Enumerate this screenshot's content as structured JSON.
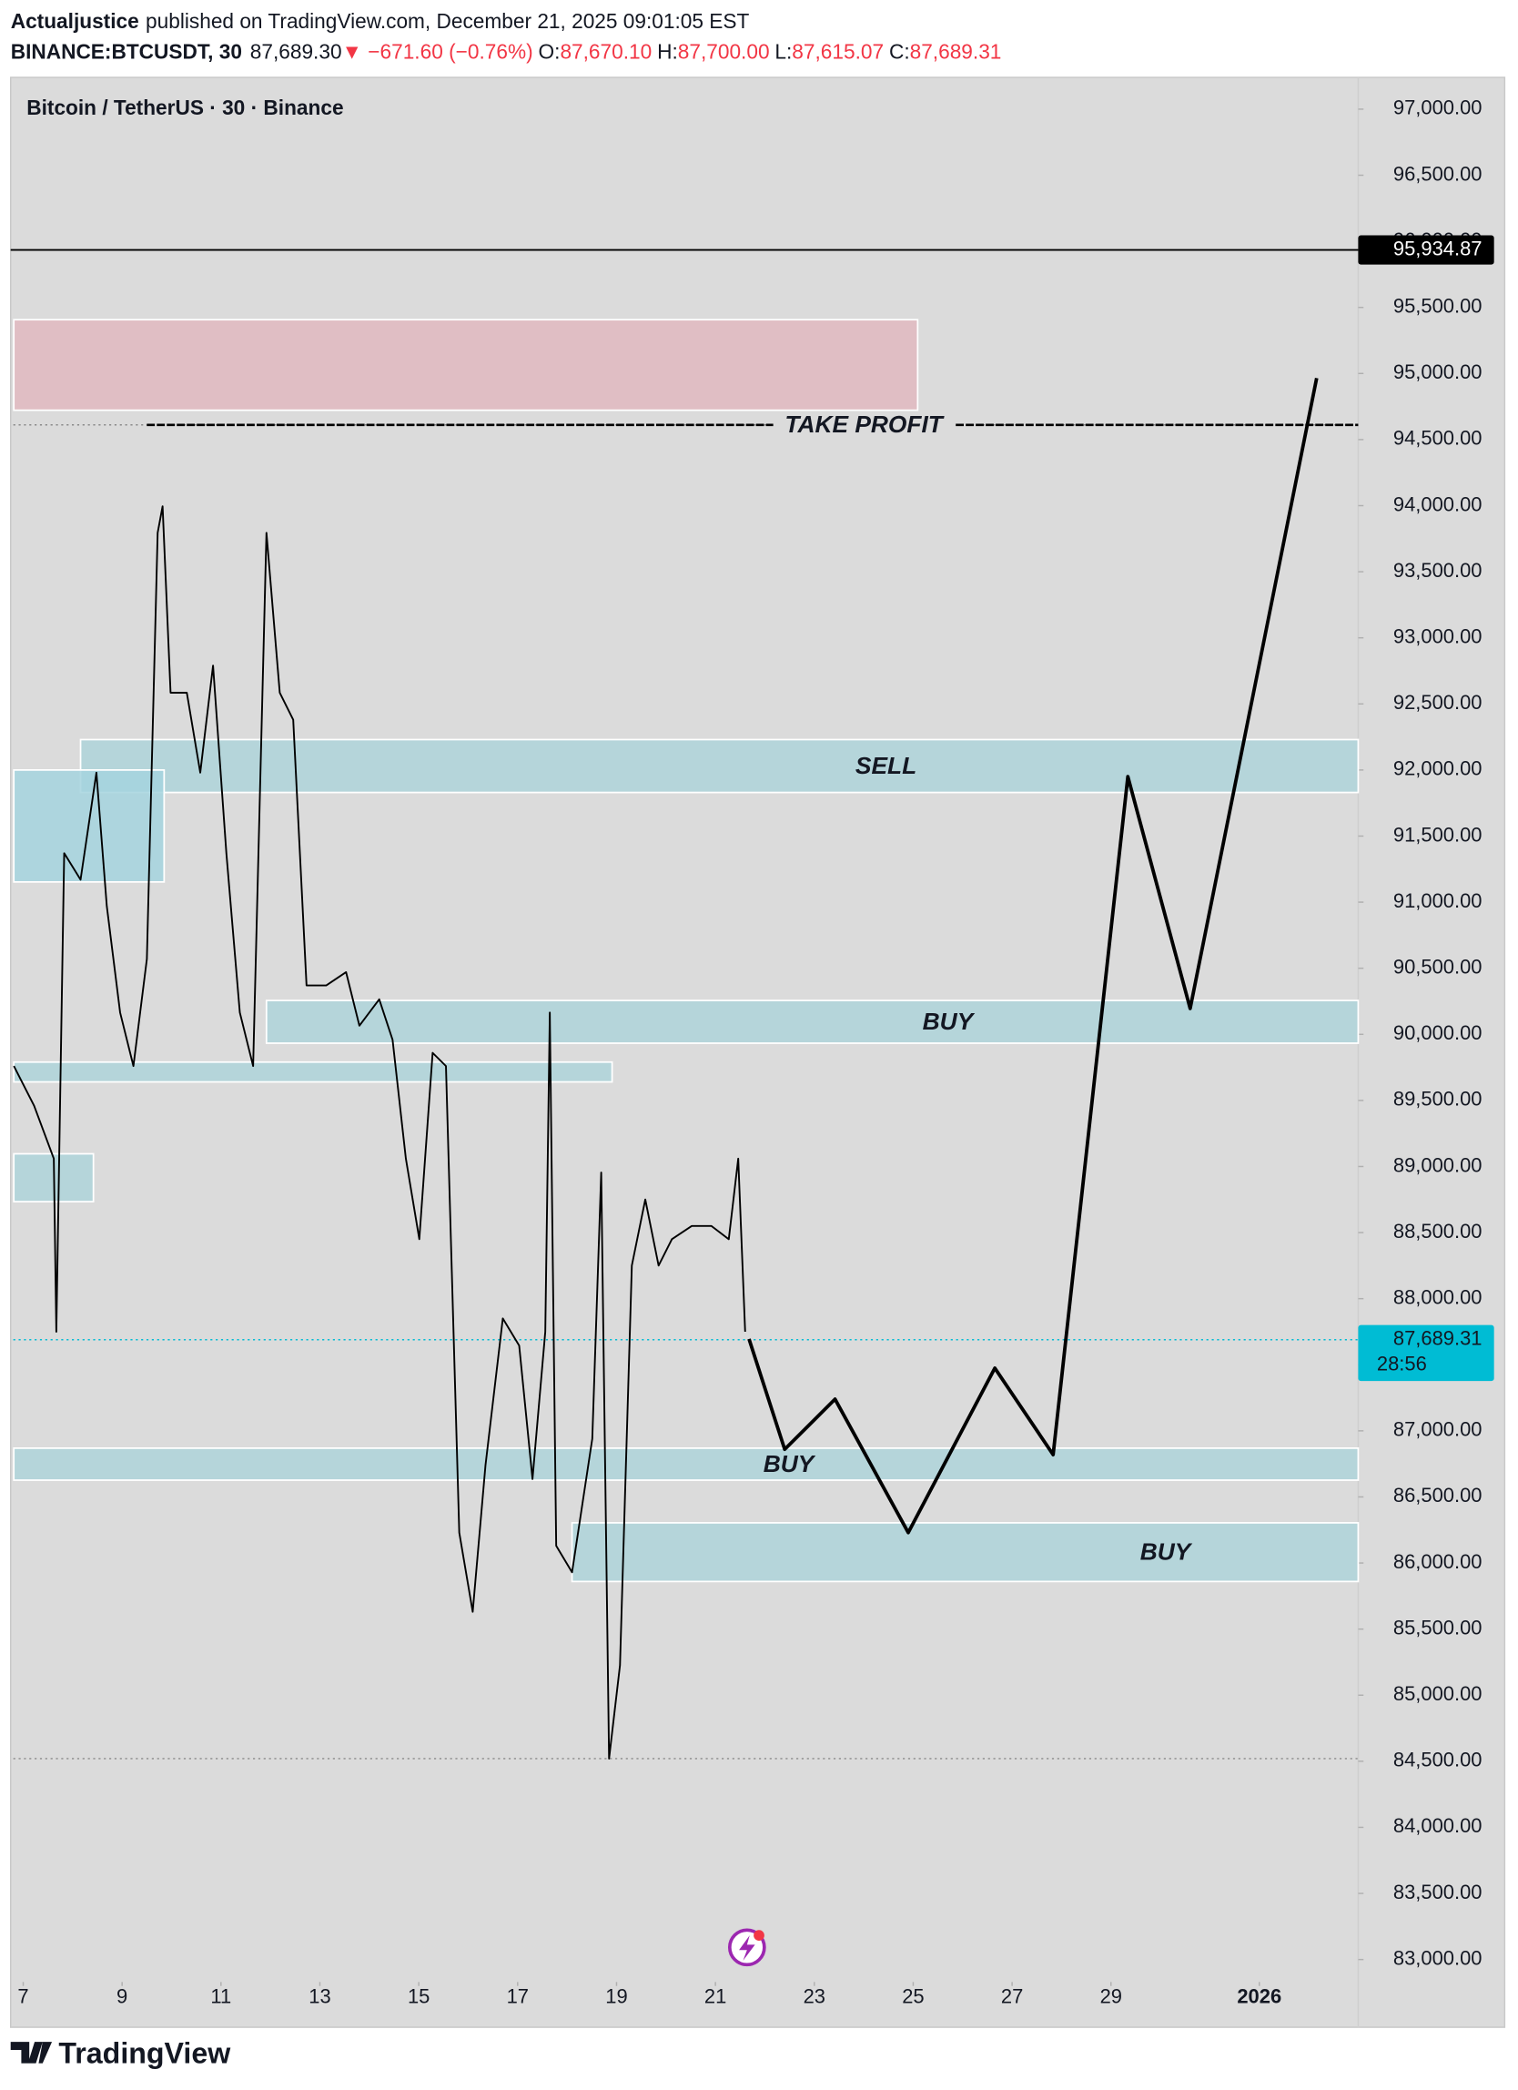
{
  "header": {
    "author": "Actualjustice",
    "published": "published on TradingView.com, December 21, 2025 09:01:05 EST",
    "symbol": "BINANCE:BTCUSDT, 30",
    "last": "87,689.30",
    "change": "▼ −671.60 (−0.76%)",
    "ohlc": [
      {
        "label": "O:",
        "value": "87,670.10"
      },
      {
        "label": "H:",
        "value": "87,700.00"
      },
      {
        "label": "L:",
        "value": "87,615.07"
      },
      {
        "label": "C:",
        "value": "87,689.31"
      }
    ]
  },
  "footer": {
    "brand": "TradingView"
  },
  "chart_data": {
    "type": "line",
    "title": "Bitcoin / TetherUS · 30 · Binance",
    "xlim": [
      6.8,
      34
    ],
    "xticks": [
      7,
      9,
      11,
      13,
      15,
      17,
      19,
      21,
      23,
      25,
      27,
      29,
      {
        "value": 32,
        "label": "2026"
      }
    ],
    "ylim": [
      82830,
      97200
    ],
    "yticks": [
      {
        "value": 83000,
        "label": "83,000.00"
      },
      {
        "value": 83500,
        "label": "83,500.00"
      },
      {
        "value": 84000,
        "label": "84,000.00"
      },
      {
        "value": 84500,
        "label": "84,500.00"
      },
      {
        "value": 85000,
        "label": "85,000.00"
      },
      {
        "value": 85500,
        "label": "85,500.00"
      },
      {
        "value": 86000,
        "label": "86,000.00"
      },
      {
        "value": 86500,
        "label": "86,500.00"
      },
      {
        "value": 87000,
        "label": "87,000.00"
      },
      {
        "value": 87500,
        "label": "87,500.00"
      },
      {
        "value": 88000,
        "label": "88,000.00"
      },
      {
        "value": 88500,
        "label": "88,500.00"
      },
      {
        "value": 89000,
        "label": "89,000.00"
      },
      {
        "value": 89500,
        "label": "89,500.00"
      },
      {
        "value": 90000,
        "label": "90,000.00"
      },
      {
        "value": 90500,
        "label": "90,500.00"
      },
      {
        "value": 91000,
        "label": "91,000.00"
      },
      {
        "value": 91500,
        "label": "91,500.00"
      },
      {
        "value": 92000,
        "label": "92,000.00"
      },
      {
        "value": 92500,
        "label": "92,500.00"
      },
      {
        "value": 93000,
        "label": "93,000.00"
      },
      {
        "value": 93500,
        "label": "93,500.00"
      },
      {
        "value": 94000,
        "label": "94,000.00"
      },
      {
        "value": 94500,
        "label": "94,500.00"
      },
      {
        "value": 95000,
        "label": "95,000.00"
      },
      {
        "value": 95500,
        "label": "95,500.00"
      },
      {
        "value": 96000,
        "label": "96,000.00"
      },
      {
        "value": 96500,
        "label": "96,500.00"
      },
      {
        "value": 97000,
        "label": "97,000.00"
      }
    ],
    "grid": false,
    "series": [
      {
        "color": "#000000",
        "width": 1.3,
        "x": [
          6.81,
          7.22,
          7.62,
          7.67,
          7.83,
          8.16,
          8.48,
          8.69,
          8.96,
          9.23,
          9.5,
          9.72,
          9.82,
          9.98,
          10.31,
          10.58,
          10.84,
          11.11,
          11.38,
          11.65,
          11.92,
          12.19,
          12.46,
          12.73,
          13.13,
          13.53,
          13.8,
          14.2,
          14.47,
          14.74,
          15.01,
          15.28,
          15.55,
          15.82,
          16.09,
          16.35,
          16.7,
          17.03,
          17.3,
          17.56,
          17.65,
          17.78,
          18.1,
          18.51,
          18.69,
          18.85,
          19.07,
          19.31,
          19.58,
          19.85,
          20.12,
          20.52,
          20.92,
          21.27,
          21.46,
          21.6
        ],
        "values": [
          89760,
          89460,
          89060,
          87750,
          91370,
          91170,
          91980,
          90970,
          90165,
          89760,
          90570,
          93795,
          93995,
          92585,
          92585,
          91980,
          92790,
          91370,
          90165,
          89760,
          93795,
          92585,
          92380,
          90370,
          90370,
          90470,
          90065,
          90265,
          89960,
          89060,
          88450,
          89860,
          89760,
          86230,
          85630,
          86740,
          87850,
          87645,
          86635,
          87750,
          90165,
          86130,
          85930,
          86940,
          88955,
          84520,
          85225,
          88250,
          88750,
          88250,
          88450,
          88550,
          88550,
          88450,
          89060,
          87750
        ]
      },
      {
        "color": "#000000",
        "width": 2.6,
        "x": [
          21.68,
          22.4,
          23.42,
          24.9,
          26.65,
          27.83,
          29.34,
          30.6,
          33.16
        ],
        "values": [
          87695,
          86860,
          87240,
          86230,
          87475,
          86820,
          91950,
          90195,
          94965
        ]
      }
    ],
    "zones": [
      {
        "x": [
          6.81,
          25.09
        ],
        "y": [
          95407,
          94722
        ],
        "color": "#e0b9c0"
      },
      {
        "x": [
          8.16,
          34
        ],
        "y": [
          92230,
          91830
        ],
        "color": "#aed3d9",
        "label": "SELL",
        "label_x": 24.45
      },
      {
        "x": [
          6.81,
          9.85
        ],
        "y": [
          92000,
          91153
        ],
        "color": "#a5d3de"
      },
      {
        "x": [
          11.92,
          34
        ],
        "y": [
          90256,
          89933
        ],
        "color": "#aed3d9",
        "label": "BUY",
        "label_x": 25.7
      },
      {
        "x": [
          6.81,
          18.91
        ],
        "y": [
          89790,
          89640
        ],
        "color": "#aed3d9"
      },
      {
        "x": [
          6.81,
          8.42
        ],
        "y": [
          89096,
          88734
        ],
        "color": "#aed3d9"
      },
      {
        "x": [
          6.81,
          34
        ],
        "y": [
          86869,
          86627
        ],
        "color": "#aed3d9",
        "label": "BUY",
        "label_x": 22.48
      },
      {
        "x": [
          18.1,
          34
        ],
        "y": [
          86304,
          85860
        ],
        "color": "#aed3d9",
        "label": "BUY",
        "label_x": 30.1
      }
    ],
    "take_profit": {
      "label": "TAKE PROFIT",
      "value": 94611,
      "x": [
        9.5,
        34
      ],
      "label_x": 24.0
    },
    "dotted_lines": [
      94611,
      84520,
      87689.31
    ],
    "price_labels": [
      {
        "value": 95934.87,
        "label": "95,934.87",
        "color": "#000000",
        "line": true
      },
      {
        "value": 87689.31,
        "label": "87,689.31",
        "sub": "28:56",
        "color": "#00bcd4"
      }
    ]
  }
}
